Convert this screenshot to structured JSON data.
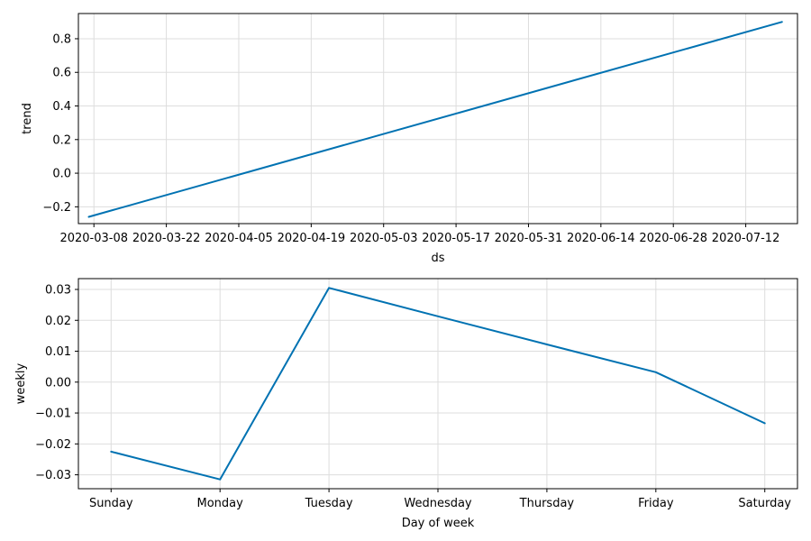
{
  "colors": {
    "line": "#0072b2",
    "grid": "#dddddd"
  },
  "chart_data": [
    {
      "type": "line",
      "title": "",
      "xlabel": "ds",
      "ylabel": "trend",
      "x_type": "date",
      "x": [
        "2020-03-07",
        "2020-07-19"
      ],
      "series": [
        {
          "values": [
            -0.26,
            0.9
          ]
        }
      ],
      "xlim": [
        "2020-03-05",
        "2020-07-22"
      ],
      "ylim": [
        -0.3,
        0.95
      ],
      "xticks": [
        {
          "value": "2020-03-08",
          "label": "2020-03-08"
        },
        {
          "value": "2020-03-22",
          "label": "2020-03-22"
        },
        {
          "value": "2020-04-05",
          "label": "2020-04-05"
        },
        {
          "value": "2020-04-19",
          "label": "2020-04-19"
        },
        {
          "value": "2020-05-03",
          "label": "2020-05-03"
        },
        {
          "value": "2020-05-17",
          "label": "2020-05-17"
        },
        {
          "value": "2020-05-31",
          "label": "2020-05-31"
        },
        {
          "value": "2020-06-14",
          "label": "2020-06-14"
        },
        {
          "value": "2020-06-28",
          "label": "2020-06-28"
        },
        {
          "value": "2020-07-12",
          "label": "2020-07-12"
        }
      ],
      "yticks": [
        {
          "value": -0.2,
          "label": "−0.2"
        },
        {
          "value": 0.0,
          "label": "0.0"
        },
        {
          "value": 0.2,
          "label": "0.2"
        },
        {
          "value": 0.4,
          "label": "0.4"
        },
        {
          "value": 0.6,
          "label": "0.6"
        },
        {
          "value": 0.8,
          "label": "0.8"
        }
      ],
      "grid": true
    },
    {
      "type": "line",
      "title": "",
      "xlabel": "Day of week",
      "ylabel": "weekly",
      "categories": [
        "Sunday",
        "Monday",
        "Tuesday",
        "Wednesday",
        "Thursday",
        "Friday",
        "Saturday"
      ],
      "series": [
        {
          "values": [
            -0.0225,
            -0.0315,
            0.0305,
            0.0213,
            0.0122,
            0.0032,
            -0.0133
          ]
        }
      ],
      "xlim": [
        -0.3,
        6.3
      ],
      "ylim": [
        -0.0345,
        0.0335
      ],
      "yticks": [
        {
          "value": -0.03,
          "label": "−0.03"
        },
        {
          "value": -0.02,
          "label": "−0.02"
        },
        {
          "value": -0.01,
          "label": "−0.01"
        },
        {
          "value": 0.0,
          "label": "0.00"
        },
        {
          "value": 0.01,
          "label": "0.01"
        },
        {
          "value": 0.02,
          "label": "0.02"
        },
        {
          "value": 0.03,
          "label": "0.03"
        }
      ],
      "grid": true
    }
  ]
}
